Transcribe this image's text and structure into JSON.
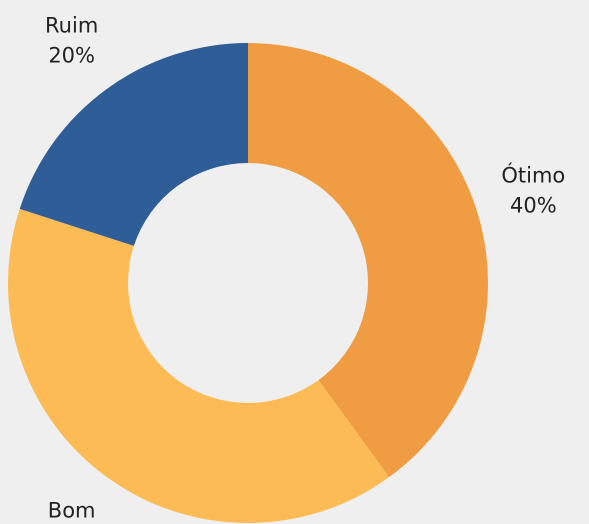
{
  "chart_data": {
    "type": "donut",
    "categories": [
      "Ótimo",
      "Bom",
      "Ruim"
    ],
    "values": [
      40,
      40,
      20
    ],
    "value_labels": [
      "40%",
      null,
      "20%"
    ],
    "colors": [
      "#f09c42",
      "#fdbb56",
      "#2e5d98"
    ]
  }
}
